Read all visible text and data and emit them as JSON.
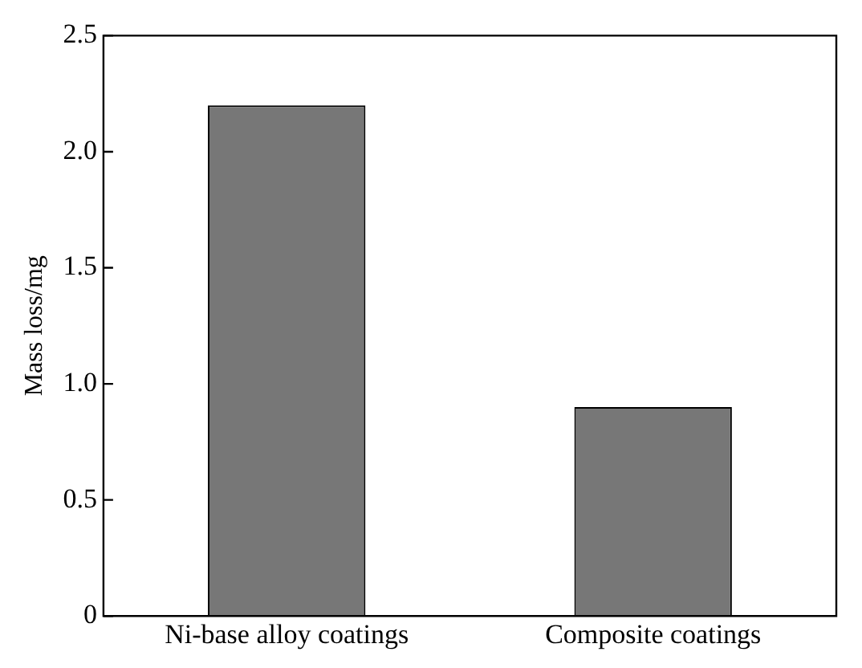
{
  "chart_data": {
    "type": "bar",
    "ylabel": "Mass loss/mg",
    "categories": [
      "Ni-base alloy coatings",
      "Composite coatings"
    ],
    "values": [
      2.2,
      0.9
    ],
    "color": "#777777",
    "ylim": [
      0,
      2.5
    ],
    "yticks": [
      0,
      {
        "value": 0.5,
        "label": "0.5"
      },
      {
        "value": 1,
        "label": "1.0"
      },
      {
        "value": 1.5,
        "label": "1.5"
      },
      {
        "value": 2,
        "label": "2.0"
      },
      {
        "value": 2.5,
        "label": "2.5"
      }
    ],
    "grid": false,
    "legend": false
  }
}
